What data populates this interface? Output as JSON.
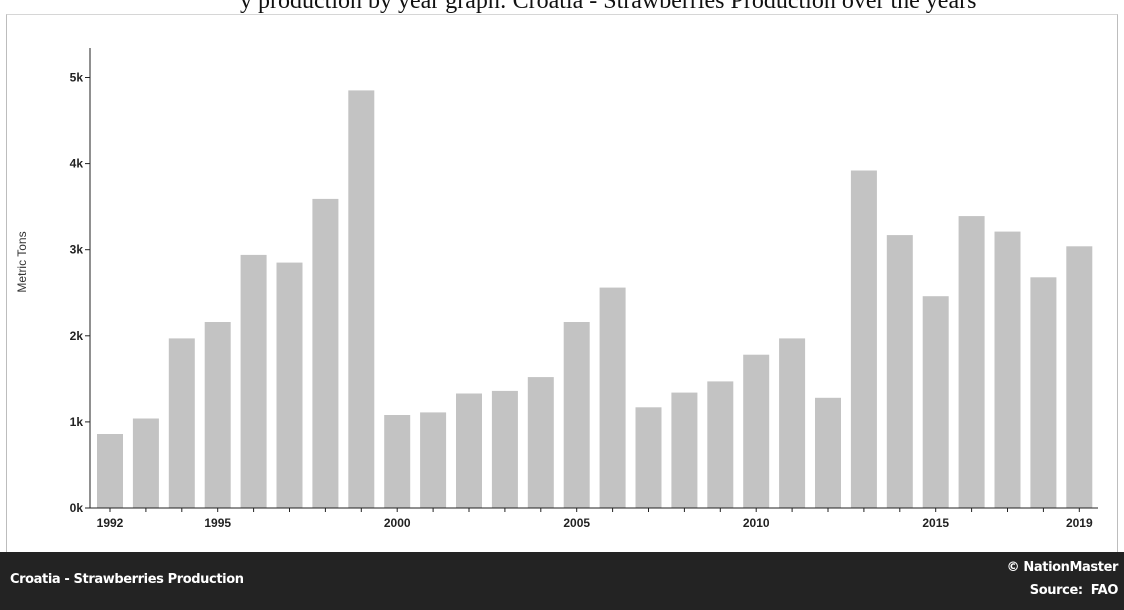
{
  "header": {
    "caption": "y production by year graph: Croatia - Strawberries Production over the years"
  },
  "chart_data": {
    "type": "bar",
    "title": "",
    "xlabel": "",
    "ylabel": "Metric Tons",
    "ylim": [
      0,
      5000
    ],
    "yticks": [
      0,
      1000,
      2000,
      3000,
      4000,
      5000
    ],
    "ytick_labels": [
      "0k",
      "1k",
      "2k",
      "3k",
      "4k",
      "5k"
    ],
    "xtick_labels": [
      "1992",
      "1995",
      "2000",
      "2005",
      "2010",
      "2015",
      "2019"
    ],
    "bar_color": "#c3c3c3",
    "grid": false,
    "categories": [
      1992,
      1993,
      1994,
      1995,
      1996,
      1997,
      1998,
      1999,
      2000,
      2001,
      2002,
      2003,
      2004,
      2005,
      2006,
      2007,
      2008,
      2009,
      2010,
      2011,
      2012,
      2013,
      2014,
      2015,
      2016,
      2017,
      2018,
      2019
    ],
    "values": [
      860,
      1040,
      1970,
      2160,
      2940,
      2850,
      3590,
      4850,
      1080,
      1110,
      1330,
      1360,
      1520,
      2160,
      2560,
      1170,
      1340,
      1470,
      1780,
      1970,
      1280,
      3920,
      3170,
      2460,
      3390,
      3210,
      2680,
      3040
    ]
  },
  "footer": {
    "title": "Croatia - Strawberries Production",
    "brand": "© NationMaster",
    "source_label": "Source:",
    "source_value": "FAO"
  }
}
